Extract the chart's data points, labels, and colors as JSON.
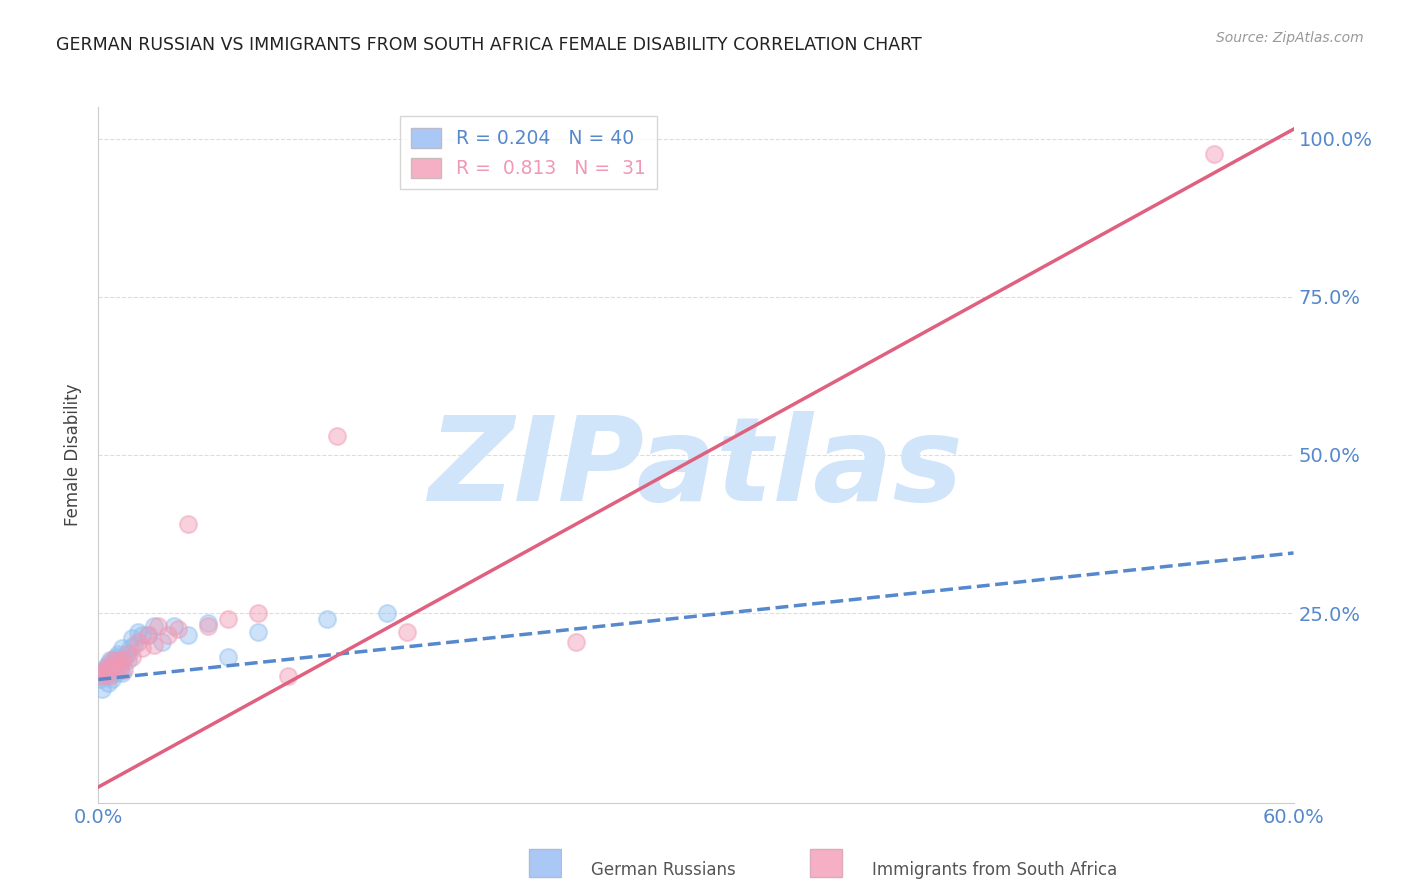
{
  "title": "GERMAN RUSSIAN VS IMMIGRANTS FROM SOUTH AFRICA FEMALE DISABILITY CORRELATION CHART",
  "source": "Source: ZipAtlas.com",
  "ylabel": "Female Disability",
  "x_range": [
    0.0,
    0.6
  ],
  "y_range": [
    -0.05,
    1.05
  ],
  "right_yticklabels": [
    "25.0%",
    "50.0%",
    "75.0%",
    "100.0%"
  ],
  "right_ytick_vals": [
    0.25,
    0.5,
    0.75,
    1.0
  ],
  "blue_scatter_x": [
    0.001,
    0.002,
    0.003,
    0.003,
    0.004,
    0.004,
    0.005,
    0.005,
    0.006,
    0.006,
    0.007,
    0.007,
    0.008,
    0.008,
    0.009,
    0.009,
    0.01,
    0.01,
    0.011,
    0.011,
    0.012,
    0.012,
    0.013,
    0.014,
    0.015,
    0.016,
    0.017,
    0.018,
    0.02,
    0.022,
    0.025,
    0.028,
    0.032,
    0.038,
    0.045,
    0.055,
    0.065,
    0.08,
    0.115,
    0.145
  ],
  "blue_scatter_y": [
    0.145,
    0.13,
    0.155,
    0.16,
    0.15,
    0.165,
    0.14,
    0.17,
    0.155,
    0.175,
    0.145,
    0.165,
    0.16,
    0.175,
    0.155,
    0.18,
    0.165,
    0.185,
    0.16,
    0.175,
    0.155,
    0.195,
    0.175,
    0.185,
    0.175,
    0.195,
    0.21,
    0.2,
    0.22,
    0.215,
    0.215,
    0.23,
    0.205,
    0.23,
    0.215,
    0.235,
    0.18,
    0.22,
    0.24,
    0.25
  ],
  "pink_scatter_x": [
    0.001,
    0.002,
    0.003,
    0.004,
    0.005,
    0.006,
    0.007,
    0.008,
    0.009,
    0.01,
    0.011,
    0.012,
    0.013,
    0.015,
    0.017,
    0.02,
    0.022,
    0.025,
    0.028,
    0.03,
    0.035,
    0.04,
    0.045,
    0.055,
    0.065,
    0.08,
    0.095,
    0.12,
    0.155,
    0.24,
    0.56
  ],
  "pink_scatter_y": [
    0.15,
    0.155,
    0.16,
    0.155,
    0.165,
    0.15,
    0.175,
    0.165,
    0.175,
    0.17,
    0.165,
    0.175,
    0.16,
    0.185,
    0.18,
    0.205,
    0.195,
    0.215,
    0.2,
    0.23,
    0.215,
    0.225,
    0.39,
    0.23,
    0.24,
    0.25,
    0.15,
    0.53,
    0.22,
    0.205,
    0.975
  ],
  "blue_trend_x": [
    0.0,
    0.6
  ],
  "blue_trend_y": [
    0.145,
    0.345
  ],
  "pink_trend_x": [
    0.0,
    0.6
  ],
  "pink_trend_y": [
    -0.025,
    1.015
  ],
  "blue_color": "#90bff0",
  "pink_color": "#f099b5",
  "blue_trend_color": "#5588cc",
  "pink_trend_color": "#e06080",
  "watermark_text": "ZIPatlas",
  "watermark_color": "#d0e5fa",
  "grid_color": "#dddddd",
  "title_color": "#222222",
  "axis_label_color": "#5588cc",
  "background_color": "#ffffff",
  "legend_blue_label": "R = 0.204   N = 40",
  "legend_pink_label": "R =  0.813   N =  31",
  "legend_blue_color": "#aac8f5",
  "legend_pink_color": "#f5b0c5",
  "bottom_label_blue": "German Russians",
  "bottom_label_pink": "Immigrants from South Africa"
}
